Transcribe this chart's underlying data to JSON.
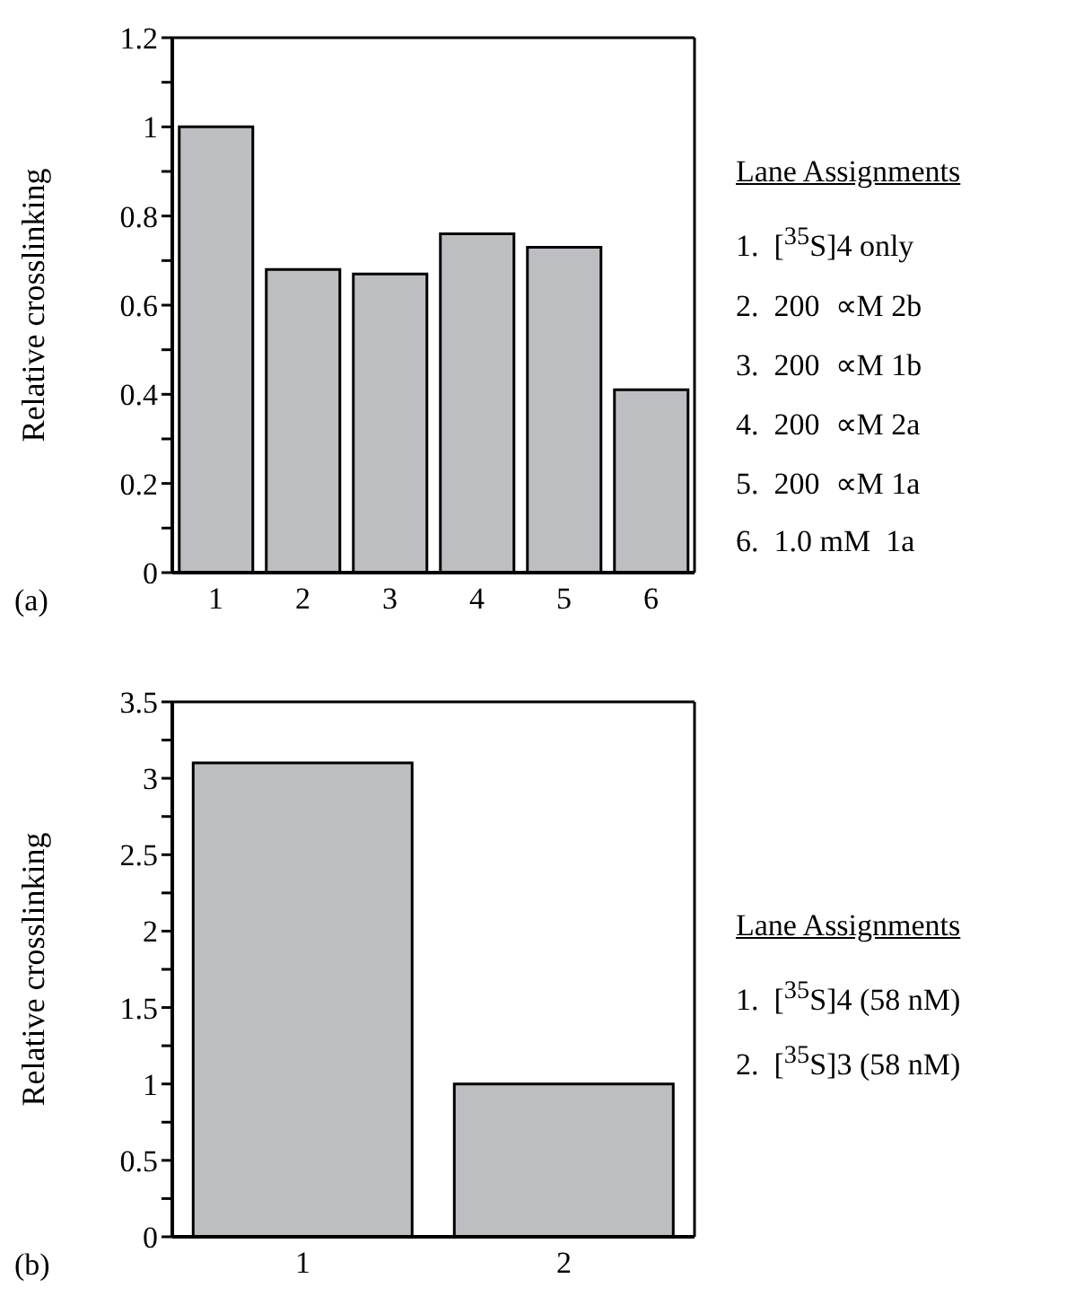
{
  "chart_data": [
    {
      "type": "bar",
      "ylabel": "Relative crosslinking",
      "categories": [
        "1",
        "2",
        "3",
        "4",
        "5",
        "6"
      ],
      "values": [
        1.0,
        0.68,
        0.67,
        0.76,
        0.73,
        0.41
      ],
      "color": "#bdbec2",
      "ylim": [
        0,
        1.2
      ],
      "yticks": [
        0,
        {
          "value": 0.1,
          "label": null
        },
        0.2,
        {
          "value": 0.3,
          "label": null
        },
        0.4,
        {
          "value": 0.5,
          "label": null
        },
        0.6,
        {
          "value": 0.7,
          "label": null
        },
        0.8,
        {
          "value": 0.9,
          "label": null
        },
        1,
        {
          "value": 1.1,
          "label": null
        },
        1.2
      ],
      "grid": false,
      "legend": false,
      "annotations": [
        "(a)",
        "Lane Assignments",
        "1.  [$^{35}$S]4 only",
        "2.  200  ∝M 2b",
        "3.  200  ∝M 1b",
        "4.  200  ∝M 2a",
        "5.  200  ∝M 1a",
        "6.  1.0 mM  1a"
      ]
    },
    {
      "type": "bar",
      "ylabel": "Relative crosslinking",
      "categories": [
        "1",
        "2"
      ],
      "values": [
        3.1,
        1.0
      ],
      "color": "#bdbec2",
      "ylim": [
        0,
        3.5
      ],
      "yticks": [
        0,
        {
          "value": 0.25,
          "label": null
        },
        0.5,
        {
          "value": 0.75,
          "label": null
        },
        1,
        {
          "value": 1.25,
          "label": null
        },
        1.5,
        {
          "value": 1.75,
          "label": null
        },
        2,
        {
          "value": 2.25,
          "label": null
        },
        2.5,
        {
          "value": 2.75,
          "label": null
        },
        3,
        {
          "value": 3.25,
          "label": null
        },
        3.5
      ],
      "grid": false,
      "legend": false,
      "annotations": [
        "(b)",
        "Lane Assignments",
        "1.  [$^{35}$S]4 (58 nM)",
        "2.  [$^{35}$S]3 (58 nM)"
      ]
    }
  ]
}
